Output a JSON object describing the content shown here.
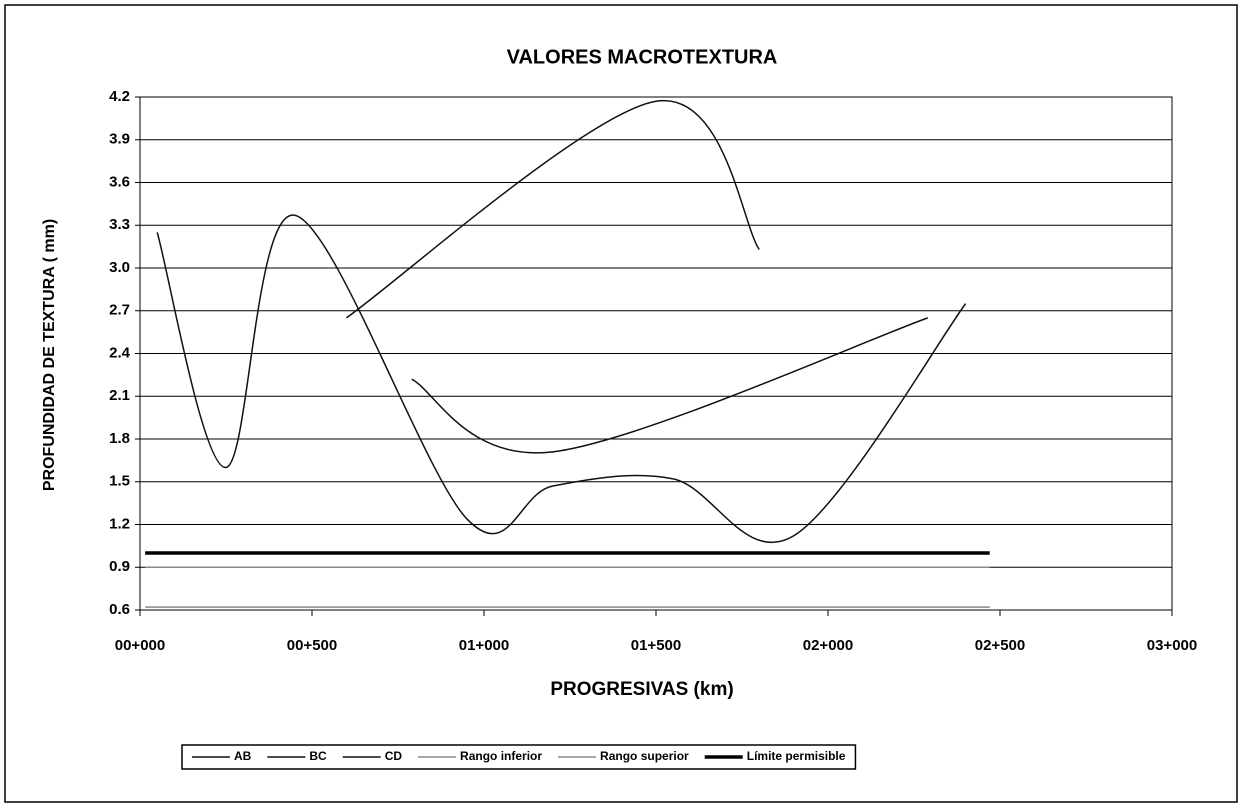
{
  "chart_data": {
    "type": "line",
    "title": "VALORES MACROTEXTURA",
    "x_label": "PROGRESIVAS (km)",
    "y_label": "PROFUNDIDAD DE TEXTURA ( mm)",
    "xlim": [
      0,
      3000
    ],
    "xticks": [
      {
        "value": 0,
        "label": "00+000"
      },
      {
        "value": 500,
        "label": "00+500"
      },
      {
        "value": 1000,
        "label": "01+000"
      },
      {
        "value": 1500,
        "label": "01+500"
      },
      {
        "value": 2000,
        "label": "02+000"
      },
      {
        "value": 2500,
        "label": "02+500"
      },
      {
        "value": 3000,
        "label": "03+000"
      }
    ],
    "ylim": [
      0.6,
      4.2
    ],
    "yticks": [
      0.6,
      0.9,
      1.2,
      1.5,
      1.8,
      2.1,
      2.4,
      2.7,
      {
        "value": 3,
        "label": "3.0"
      },
      3.3,
      3.6,
      3.9,
      4.2
    ],
    "grid": true,
    "legend": "bottom",
    "series": [
      {
        "name": "AB",
        "color": "#111111",
        "width": 1.5,
        "x": [
          50,
          250,
          450,
          950,
          1200,
          1550,
          1900,
          2400
        ],
        "values": [
          3.25,
          1.6,
          3.37,
          1.24,
          1.47,
          1.52,
          1.12,
          2.75
        ]
      },
      {
        "name": "BC",
        "color": "#111111",
        "width": 1.5,
        "x": [
          600,
          1500,
          1800
        ],
        "values": [
          2.65,
          4.17,
          3.13
        ]
      },
      {
        "name": "CD",
        "color": "#111111",
        "width": 1.5,
        "x": [
          790,
          1200,
          2290
        ],
        "values": [
          2.22,
          1.71,
          2.65
        ]
      },
      {
        "name": "Rango inferior",
        "color": "#888888",
        "width": 1.5,
        "x": [
          15,
          2470
        ],
        "values": [
          0.62,
          0.62
        ]
      },
      {
        "name": "Rango superior",
        "color": "#888888",
        "width": 1.5,
        "x": [
          15,
          2470
        ],
        "values": [
          0.9,
          0.9
        ]
      },
      {
        "name": "Límite permisible",
        "color": "#000000",
        "width": 3.5,
        "x": [
          15,
          2470
        ],
        "values": [
          1.0,
          1.0
        ]
      }
    ]
  }
}
